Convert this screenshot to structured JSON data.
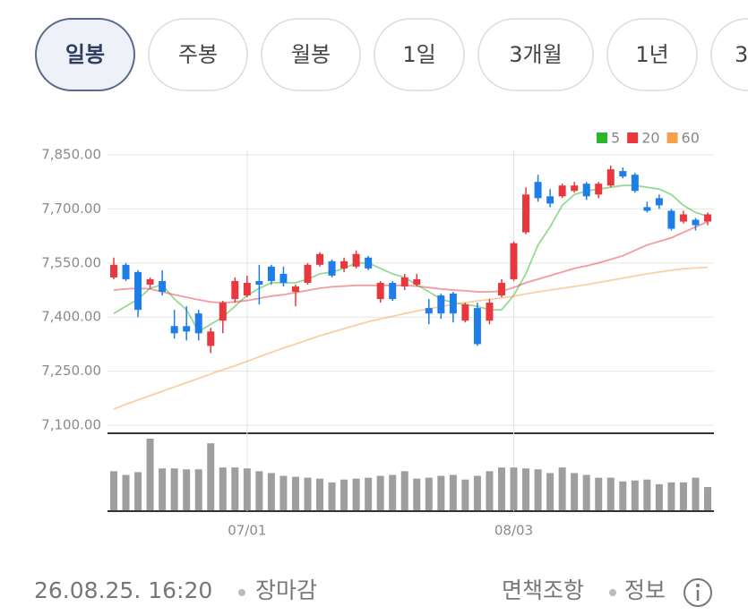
{
  "tabs": [
    "일봉",
    "주봉",
    "월봉",
    "1일",
    "3개월",
    "1년",
    "3"
  ],
  "selected_tab": 0,
  "chart_data": {
    "type": "candlestick",
    "categories": [
      null,
      null,
      null,
      null,
      null,
      null,
      null,
      null,
      null,
      null,
      null,
      "07/01",
      null,
      null,
      null,
      null,
      null,
      null,
      null,
      null,
      null,
      null,
      null,
      null,
      null,
      null,
      null,
      null,
      null,
      null,
      null,
      null,
      null,
      "08/03",
      null,
      null,
      null,
      null,
      null,
      null,
      null,
      null,
      null,
      null,
      null,
      null,
      null,
      null,
      null,
      null
    ],
    "open": [
      7510,
      7545,
      7525,
      7490,
      7500,
      7375,
      7375,
      7410,
      7320,
      7390,
      7450,
      7460,
      7500,
      7540,
      7520,
      7470,
      7495,
      7545,
      7555,
      7535,
      7540,
      7565,
      7450,
      7495,
      7485,
      7490,
      7425,
      7460,
      7465,
      7390,
      7425,
      7390,
      7460,
      7505,
      7635,
      7775,
      7735,
      7735,
      7750,
      7770,
      7740,
      7765,
      7805,
      7795,
      7705,
      7730,
      7695,
      7665,
      7670,
      7665
    ],
    "high": [
      7565,
      7550,
      7530,
      7510,
      7530,
      7420,
      7430,
      7420,
      7370,
      7445,
      7510,
      7515,
      7545,
      7545,
      7540,
      7490,
      7550,
      7580,
      7560,
      7565,
      7585,
      7570,
      7500,
      7500,
      7520,
      7520,
      7450,
      7465,
      7470,
      7440,
      7440,
      7450,
      7505,
      7610,
      7760,
      7795,
      7755,
      7770,
      7775,
      7775,
      7775,
      7820,
      7815,
      7800,
      7720,
      7740,
      7700,
      7695,
      7675,
      7690
    ],
    "low": [
      7505,
      7500,
      7400,
      7480,
      7460,
      7340,
      7335,
      7335,
      7300,
      7355,
      7440,
      7455,
      7435,
      7490,
      7485,
      7430,
      7490,
      7540,
      7510,
      7525,
      7535,
      7530,
      7440,
      7445,
      7475,
      7485,
      7380,
      7395,
      7385,
      7385,
      7320,
      7380,
      7455,
      7500,
      7630,
      7720,
      7705,
      7730,
      7745,
      7725,
      7730,
      7760,
      7785,
      7745,
      7690,
      7700,
      7640,
      7660,
      7640,
      7655
    ],
    "close": [
      7545,
      7505,
      7420,
      7505,
      7470,
      7355,
      7360,
      7355,
      7360,
      7440,
      7500,
      7495,
      7490,
      7500,
      7495,
      7485,
      7545,
      7575,
      7515,
      7555,
      7575,
      7535,
      7495,
      7450,
      7510,
      7505,
      7410,
      7410,
      7410,
      7435,
      7325,
      7440,
      7495,
      7605,
      7740,
      7730,
      7715,
      7765,
      7765,
      7735,
      7770,
      7810,
      7790,
      7750,
      7695,
      7710,
      7645,
      7685,
      7655,
      7685
    ],
    "up_color": "#e8383d",
    "down_color": "#1e7de6",
    "series": [
      {
        "name": "5",
        "color": "#2bb52b",
        "values": [
          7410,
          7430,
          7450,
          7480,
          7490,
          7450,
          7420,
          7360,
          7380,
          7400,
          7430,
          7460,
          7480,
          7495,
          7495,
          7495,
          7505,
          7520,
          7525,
          7535,
          7550,
          7550,
          7535,
          7520,
          7510,
          7490,
          7470,
          7450,
          7440,
          7435,
          7430,
          7420,
          7420,
          7460,
          7520,
          7600,
          7650,
          7710,
          7740,
          7750,
          7755,
          7760,
          7765,
          7765,
          7760,
          7755,
          7740,
          7710,
          7690,
          7680
        ]
      },
      {
        "name": "20",
        "color": "#e8383d",
        "values": [
          7475,
          7478,
          7480,
          7478,
          7470,
          7462,
          7455,
          7448,
          7442,
          7440,
          7442,
          7446,
          7452,
          7458,
          7462,
          7468,
          7474,
          7480,
          7484,
          7486,
          7488,
          7488,
          7488,
          7488,
          7488,
          7486,
          7482,
          7478,
          7475,
          7473,
          7470,
          7470,
          7472,
          7482,
          7495,
          7505,
          7515,
          7525,
          7535,
          7542,
          7550,
          7560,
          7570,
          7585,
          7600,
          7610,
          7620,
          7635,
          7650,
          7665
        ]
      },
      {
        "name": "60",
        "color": "#f5a04a",
        "values": [
          7145,
          7158,
          7170,
          7182,
          7194,
          7206,
          7218,
          7230,
          7242,
          7254,
          7265,
          7277,
          7290,
          7302,
          7314,
          7325,
          7337,
          7348,
          7358,
          7368,
          7378,
          7387,
          7395,
          7402,
          7410,
          7417,
          7423,
          7429,
          7435,
          7440,
          7445,
          7449,
          7453,
          7458,
          7464,
          7470,
          7475,
          7480,
          7485,
          7490,
          7496,
          7502,
          7508,
          7514,
          7520,
          7525,
          7530,
          7534,
          7536,
          7538
        ]
      }
    ],
    "volume": {
      "color": "#9e9e9e",
      "values": [
        42,
        38,
        41,
        77,
        45,
        45,
        44,
        44,
        72,
        46,
        46,
        45,
        42,
        40,
        37,
        36,
        35,
        34,
        30,
        33,
        34,
        35,
        37,
        38,
        42,
        34,
        35,
        37,
        38,
        33,
        37,
        42,
        46,
        46,
        45,
        44,
        40,
        46,
        40,
        38,
        35,
        35,
        31,
        32,
        33,
        28,
        30,
        30,
        35,
        25
      ]
    },
    "ylim": [
      7100,
      7850
    ],
    "yticks": [
      {
        "value": 7100,
        "label": "7,100.00"
      },
      {
        "value": 7250,
        "label": "7,250.00"
      },
      {
        "value": 7400,
        "label": "7,400.00"
      },
      {
        "value": 7550,
        "label": "7,550.00"
      },
      {
        "value": 7700,
        "label": "7,700.00"
      },
      {
        "value": 7850,
        "label": "7,850.00"
      }
    ],
    "grid": true,
    "legend": "top-right"
  },
  "footer": {
    "timestamp": "26.08.25. 16:20",
    "status": "장마감",
    "disclaimer": "면책조항",
    "info": "정보"
  }
}
